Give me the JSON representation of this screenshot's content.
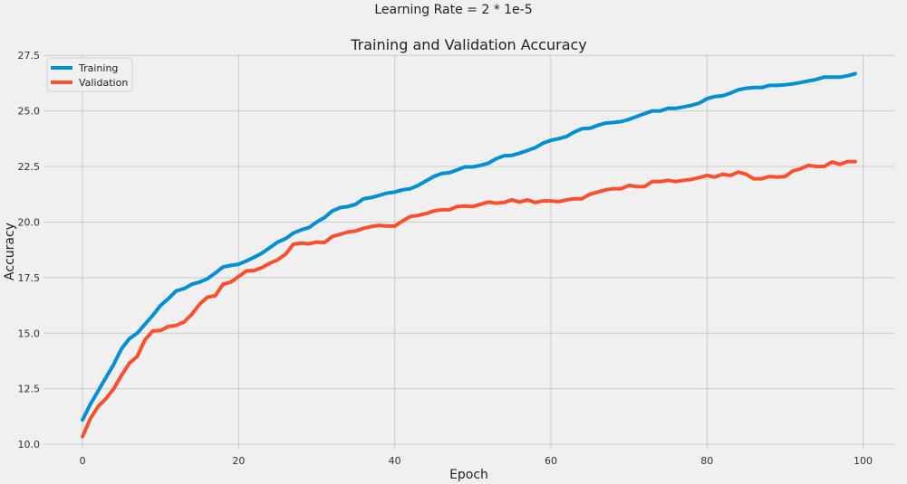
{
  "figure": {
    "suptitle": "Learning Rate = 2 * 1e-5"
  },
  "chart_data": {
    "type": "line",
    "title": "Training and Validation Accuracy",
    "xlabel": "Epoch",
    "ylabel": "Accuracy",
    "xlim": [
      -5,
      104
    ],
    "ylim": [
      9.8,
      27.55
    ],
    "xticks": [
      0,
      20,
      40,
      60,
      80,
      100
    ],
    "yticks": [
      10.0,
      12.5,
      15.0,
      17.5,
      20.0,
      22.5,
      25.0,
      27.5
    ],
    "xtick_labels": [
      "0",
      "20",
      "40",
      "60",
      "80",
      "100"
    ],
    "ytick_labels": [
      "10.0",
      "12.5",
      "15.0",
      "17.5",
      "20.0",
      "22.5",
      "25.0",
      "27.5"
    ],
    "grid": true,
    "legend_position": "top-left",
    "x": [
      0,
      1,
      2,
      3,
      4,
      5,
      6,
      7,
      8,
      9,
      10,
      11,
      12,
      13,
      14,
      15,
      16,
      17,
      18,
      19,
      20,
      21,
      22,
      23,
      24,
      25,
      26,
      27,
      28,
      29,
      30,
      31,
      32,
      33,
      34,
      35,
      36,
      37,
      38,
      39,
      40,
      41,
      42,
      43,
      44,
      45,
      46,
      47,
      48,
      49,
      50,
      51,
      52,
      53,
      54,
      55,
      56,
      57,
      58,
      59,
      60,
      61,
      62,
      63,
      64,
      65,
      66,
      67,
      68,
      69,
      70,
      71,
      72,
      73,
      74,
      75,
      76,
      77,
      78,
      79,
      80,
      81,
      82,
      83,
      84,
      85,
      86,
      87,
      88,
      89,
      90,
      91,
      92,
      93,
      94,
      95,
      96,
      97,
      98,
      99
    ],
    "series": [
      {
        "name": "Training",
        "color": "#008fd5",
        "values": [
          11.1,
          11.8,
          12.4,
          13.0,
          13.6,
          14.3,
          14.75,
          15.0,
          15.4,
          15.8,
          16.25,
          16.55,
          16.9,
          17.0,
          17.2,
          17.3,
          17.45,
          17.7,
          17.98,
          18.05,
          18.1,
          18.25,
          18.42,
          18.6,
          18.85,
          19.1,
          19.25,
          19.5,
          19.65,
          19.75,
          20.0,
          20.2,
          20.5,
          20.65,
          20.7,
          20.8,
          21.05,
          21.1,
          21.2,
          21.3,
          21.35,
          21.45,
          21.5,
          21.65,
          21.85,
          22.05,
          22.18,
          22.22,
          22.35,
          22.48,
          22.48,
          22.55,
          22.65,
          22.85,
          22.98,
          23.0,
          23.1,
          23.22,
          23.35,
          23.55,
          23.68,
          23.75,
          23.85,
          24.05,
          24.2,
          24.22,
          24.35,
          24.45,
          24.48,
          24.52,
          24.62,
          24.75,
          24.88,
          25.0,
          25.0,
          25.12,
          25.12,
          25.18,
          25.25,
          25.35,
          25.55,
          25.65,
          25.68,
          25.8,
          25.95,
          26.02,
          26.05,
          26.05,
          26.15,
          26.15,
          26.18,
          26.22,
          26.28,
          26.35,
          26.42,
          26.52,
          26.52,
          26.52,
          26.58,
          26.68
        ]
      },
      {
        "name": "Validation",
        "color": "#fc4f30",
        "values": [
          10.35,
          11.15,
          11.7,
          12.05,
          12.5,
          13.1,
          13.65,
          13.95,
          14.7,
          15.1,
          15.12,
          15.3,
          15.35,
          15.5,
          15.85,
          16.3,
          16.62,
          16.68,
          17.2,
          17.3,
          17.55,
          17.8,
          17.82,
          17.95,
          18.15,
          18.3,
          18.55,
          19.0,
          19.05,
          19.02,
          19.1,
          19.08,
          19.35,
          19.45,
          19.55,
          19.6,
          19.72,
          19.8,
          19.85,
          19.82,
          19.82,
          20.05,
          20.25,
          20.3,
          20.38,
          20.5,
          20.55,
          20.55,
          20.7,
          20.72,
          20.7,
          20.8,
          20.9,
          20.85,
          20.88,
          21.0,
          20.9,
          21.0,
          20.88,
          20.95,
          20.95,
          20.92,
          21.0,
          21.05,
          21.05,
          21.25,
          21.35,
          21.45,
          21.5,
          21.5,
          21.65,
          21.6,
          21.6,
          21.82,
          21.82,
          21.88,
          21.82,
          21.88,
          21.92,
          22.0,
          22.1,
          22.02,
          22.15,
          22.1,
          22.25,
          22.15,
          21.95,
          21.95,
          22.05,
          22.02,
          22.05,
          22.3,
          22.4,
          22.55,
          22.5,
          22.5,
          22.7,
          22.6,
          22.72,
          22.72
        ]
      }
    ]
  }
}
